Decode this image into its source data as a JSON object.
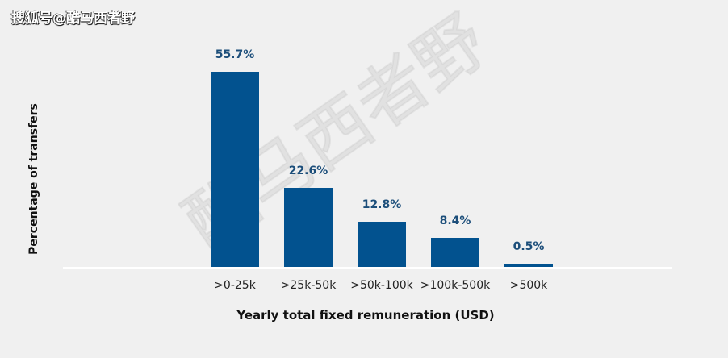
{
  "watermark": {
    "top_left": "搜狐号@酷马西者野",
    "diagonal": "酷马西者野"
  },
  "chart_data": {
    "type": "bar",
    "title": "",
    "categories": [
      ">0-25k",
      ">25k-50k",
      ">50k-100k",
      ">100k-500k",
      ">500k"
    ],
    "values": [
      55.7,
      22.6,
      12.8,
      8.4,
      0.5
    ],
    "value_labels": [
      "55.7%",
      "22.6%",
      "12.8%",
      "8.4%",
      "0.5%"
    ],
    "xlabel": "Yearly total fixed remuneration (USD)",
    "ylabel": "Percentage of transfers",
    "unit": "%",
    "ylim": [
      0,
      60
    ],
    "grid": false,
    "legend": null,
    "bar_color": "#02528f",
    "label_color": "#1c4e7a"
  }
}
